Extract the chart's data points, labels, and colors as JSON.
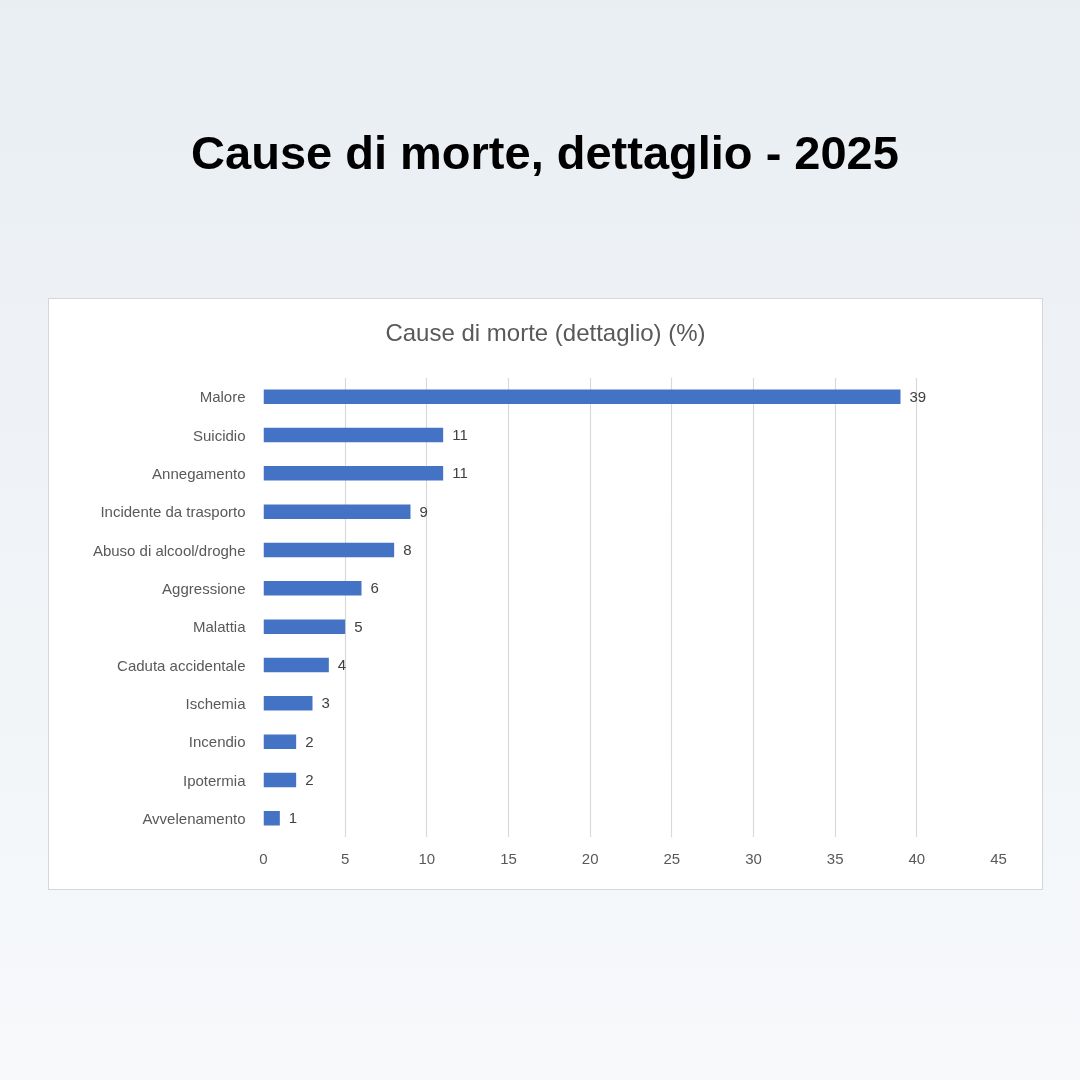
{
  "chart_data": {
    "type": "bar",
    "orientation": "horizontal",
    "title": "Cause di morte, dettaglio - 2025",
    "subtitle": "Cause di morte (dettaglio) (%)",
    "categories": [
      "Malore",
      "Suicidio",
      "Annegamento",
      "Incidente da trasporto",
      "Abuso di alcool/droghe",
      "Aggressione",
      "Malattia",
      "Caduta accidentale",
      "Ischemia",
      "Incendio",
      "Ipotermia",
      "Avvelenamento"
    ],
    "values": [
      39,
      11,
      11,
      9,
      8,
      6,
      5,
      4,
      3,
      2,
      2,
      1
    ],
    "color": "#4472c4",
    "xlim": [
      0,
      45
    ],
    "xticks": [
      0,
      5,
      10,
      15,
      20,
      25,
      30,
      35,
      40,
      45
    ],
    "grid": "x",
    "data_labels": true
  }
}
